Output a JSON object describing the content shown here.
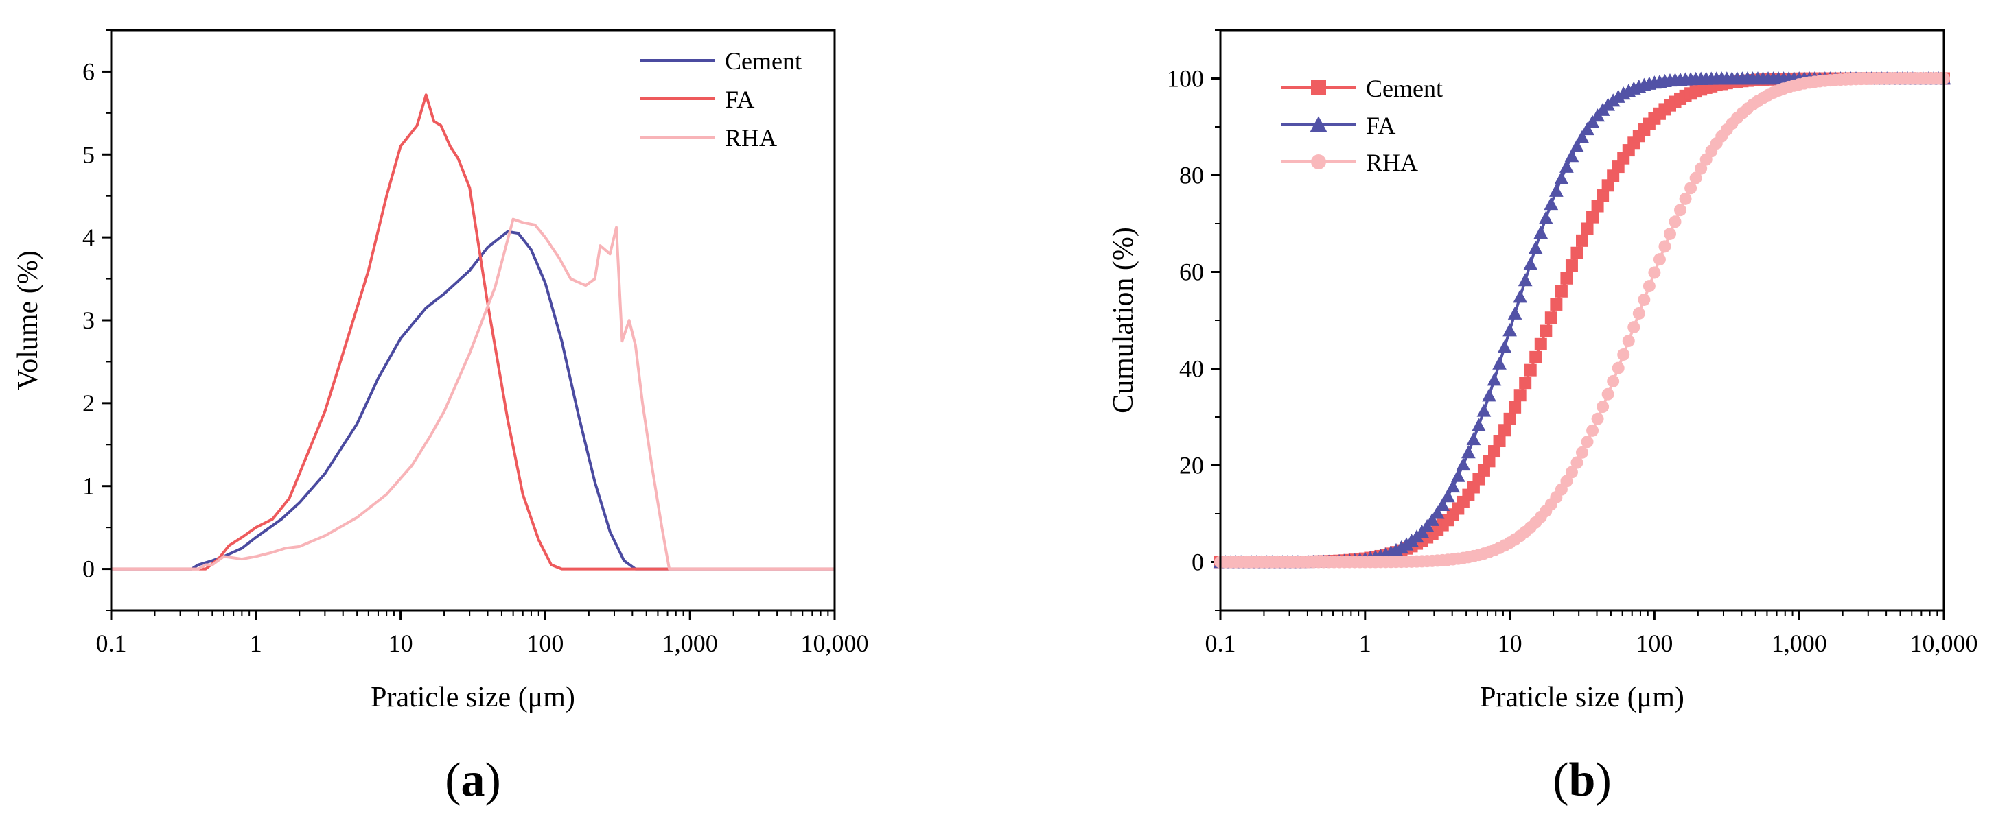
{
  "colors": {
    "cement_a": "#4b4ba0",
    "fa_a": "#ee5a5c",
    "rha_a": "#f8b4b8",
    "cement_b": "#ef5d60",
    "fa_b": "#5252a6",
    "rha_b": "#f9b8bb"
  },
  "chart_data": [
    {
      "type": "line",
      "panel_label": {
        "open": "(",
        "letter": "a",
        "close": ")"
      },
      "xlabel": "Praticle size (μm)",
      "ylabel": "Volume (%)",
      "xscale": "log",
      "xlim": [
        0.1,
        10000
      ],
      "ylim": [
        -0.5,
        6.5
      ],
      "xticks": [
        0.1,
        1,
        10,
        100,
        1000,
        10000
      ],
      "xtick_labels": [
        "0.1",
        "1",
        "10",
        "100",
        "1,000",
        "10,000"
      ],
      "yticks": [
        0,
        1,
        2,
        3,
        4,
        5,
        6
      ],
      "ytick_labels": [
        "0",
        "1",
        "2",
        "3",
        "4",
        "5",
        "6"
      ],
      "legend_position": "top-right",
      "series": [
        {
          "name": "Cement",
          "color_key": "cement_a",
          "points": [
            [
              0.1,
              0
            ],
            [
              0.36,
              0
            ],
            [
              0.4,
              0.05
            ],
            [
              0.5,
              0.1
            ],
            [
              0.6,
              0.15
            ],
            [
              0.8,
              0.25
            ],
            [
              1,
              0.38
            ],
            [
              1.5,
              0.6
            ],
            [
              2,
              0.8
            ],
            [
              3,
              1.15
            ],
            [
              5,
              1.75
            ],
            [
              7,
              2.3
            ],
            [
              10,
              2.78
            ],
            [
              15,
              3.15
            ],
            [
              20,
              3.32
            ],
            [
              30,
              3.6
            ],
            [
              40,
              3.88
            ],
            [
              55,
              4.07
            ],
            [
              65,
              4.05
            ],
            [
              80,
              3.85
            ],
            [
              100,
              3.45
            ],
            [
              130,
              2.75
            ],
            [
              170,
              1.85
            ],
            [
              220,
              1.05
            ],
            [
              280,
              0.45
            ],
            [
              350,
              0.1
            ],
            [
              420,
              0
            ],
            [
              10000,
              0
            ]
          ]
        },
        {
          "name": "FA",
          "color_key": "fa_a",
          "points": [
            [
              0.1,
              0
            ],
            [
              0.45,
              0
            ],
            [
              0.55,
              0.12
            ],
            [
              0.65,
              0.28
            ],
            [
              0.8,
              0.38
            ],
            [
              1,
              0.5
            ],
            [
              1.3,
              0.6
            ],
            [
              1.7,
              0.85
            ],
            [
              2,
              1.15
            ],
            [
              3,
              1.9
            ],
            [
              4,
              2.6
            ],
            [
              6,
              3.6
            ],
            [
              8,
              4.5
            ],
            [
              10,
              5.1
            ],
            [
              13,
              5.35
            ],
            [
              15,
              5.72
            ],
            [
              17,
              5.4
            ],
            [
              19,
              5.35
            ],
            [
              22,
              5.1
            ],
            [
              25,
              4.95
            ],
            [
              30,
              4.6
            ],
            [
              40,
              3.2
            ],
            [
              55,
              1.8
            ],
            [
              70,
              0.9
            ],
            [
              90,
              0.35
            ],
            [
              110,
              0.05
            ],
            [
              130,
              0
            ],
            [
              10000,
              0
            ]
          ]
        },
        {
          "name": "RHA",
          "color_key": "rha_a",
          "points": [
            [
              0.1,
              0
            ],
            [
              0.4,
              0
            ],
            [
              0.45,
              0.05
            ],
            [
              0.5,
              0.05
            ],
            [
              0.6,
              0.15
            ],
            [
              0.8,
              0.12
            ],
            [
              1,
              0.15
            ],
            [
              1.3,
              0.2
            ],
            [
              1.6,
              0.25
            ],
            [
              2,
              0.27
            ],
            [
              3,
              0.4
            ],
            [
              5,
              0.62
            ],
            [
              8,
              0.9
            ],
            [
              12,
              1.25
            ],
            [
              16,
              1.6
            ],
            [
              20,
              1.9
            ],
            [
              30,
              2.6
            ],
            [
              45,
              3.4
            ],
            [
              60,
              4.22
            ],
            [
              70,
              4.18
            ],
            [
              85,
              4.15
            ],
            [
              100,
              4.0
            ],
            [
              125,
              3.75
            ],
            [
              150,
              3.5
            ],
            [
              190,
              3.42
            ],
            [
              220,
              3.5
            ],
            [
              240,
              3.9
            ],
            [
              280,
              3.8
            ],
            [
              310,
              4.12
            ],
            [
              340,
              2.75
            ],
            [
              380,
              3.0
            ],
            [
              420,
              2.7
            ],
            [
              470,
              2.0
            ],
            [
              550,
              1.2
            ],
            [
              640,
              0.5
            ],
            [
              720,
              0
            ],
            [
              10000,
              0
            ]
          ]
        }
      ]
    },
    {
      "type": "line",
      "panel_label": {
        "open": "(",
        "letter": "b",
        "close": ")"
      },
      "xlabel": "Praticle size (μm)",
      "ylabel": "Cumulation (%)",
      "xscale": "log",
      "xlim": [
        0.1,
        10000
      ],
      "ylim": [
        -10,
        110
      ],
      "xticks": [
        0.1,
        1,
        10,
        100,
        1000,
        10000
      ],
      "xtick_labels": [
        "0.1",
        "1",
        "10",
        "100",
        "1,000",
        "10,000"
      ],
      "yticks": [
        0,
        20,
        40,
        60,
        80,
        100
      ],
      "ytick_labels": [
        "0",
        "20",
        "40",
        "60",
        "80",
        "100"
      ],
      "legend_position": "top-left",
      "series": [
        {
          "name": "Cement",
          "marker": "square",
          "color_key": "cement_b",
          "d50": 19,
          "spread": 0.52
        },
        {
          "name": "FA",
          "marker": "triangle",
          "color_key": "fa_b",
          "d50": 10.5,
          "spread": 0.41
        },
        {
          "name": "RHA",
          "marker": "circle",
          "color_key": "rha_b",
          "d50": 75,
          "spread": 0.5
        }
      ]
    }
  ]
}
